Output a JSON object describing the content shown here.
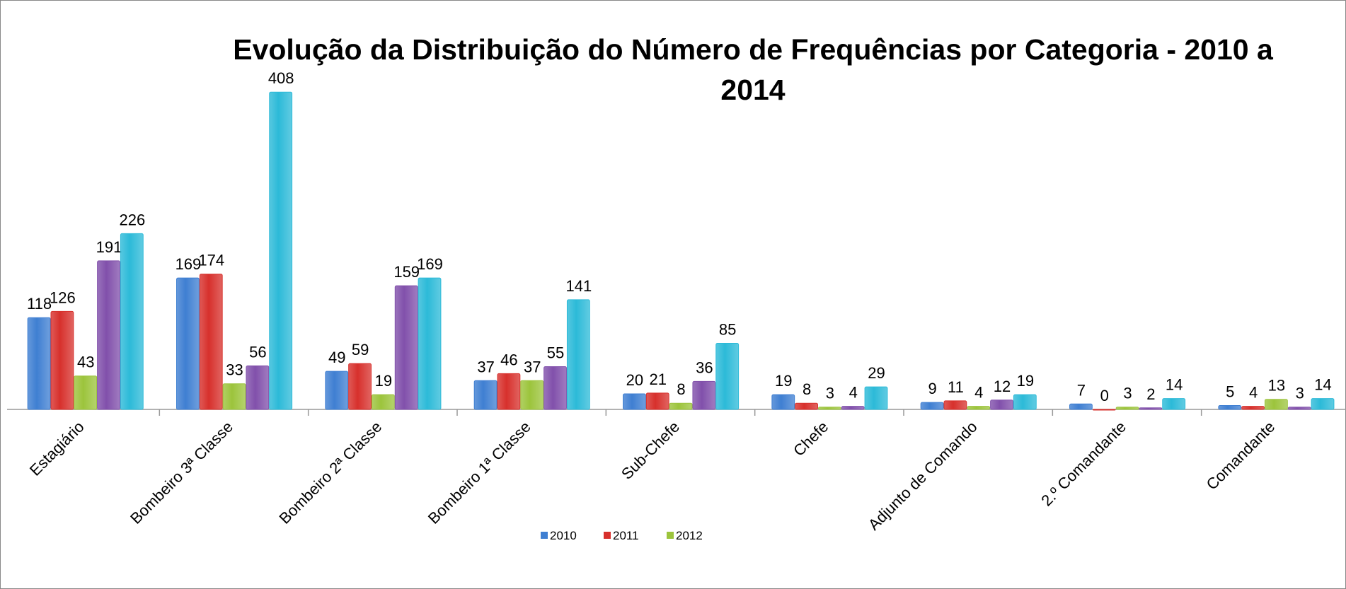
{
  "chart_data": {
    "type": "bar",
    "title": "Evolução da Distribuição do Número de Frequências por Categoria - 2010 a 2014",
    "categories": [
      "Estagiário",
      "Bombeiro 3ª Classe",
      "Bombeiro 2ª Classe",
      "Bombeiro 1ª Classe",
      "Sub-Chefe",
      "Chefe",
      "Adjunto de Comando",
      "2.º Comandante",
      "Comandante"
    ],
    "series": [
      {
        "name": "2010",
        "color": "#3f7fd2",
        "values": [
          118,
          169,
          49,
          37,
          20,
          19,
          9,
          7,
          5
        ]
      },
      {
        "name": "2011",
        "color": "#d7302c",
        "values": [
          126,
          174,
          59,
          46,
          21,
          8,
          11,
          0,
          4
        ]
      },
      {
        "name": "2012",
        "color": "#9cc43c",
        "values": [
          43,
          33,
          19,
          37,
          8,
          3,
          4,
          3,
          13
        ]
      },
      {
        "color": "#8150ab",
        "values": [
          191,
          56,
          159,
          55,
          36,
          4,
          12,
          2,
          3
        ]
      },
      {
        "color": "#2cbad8",
        "values": [
          226,
          408,
          169,
          141,
          85,
          29,
          19,
          14,
          14
        ]
      }
    ],
    "ylim": [
      0,
      450
    ]
  }
}
